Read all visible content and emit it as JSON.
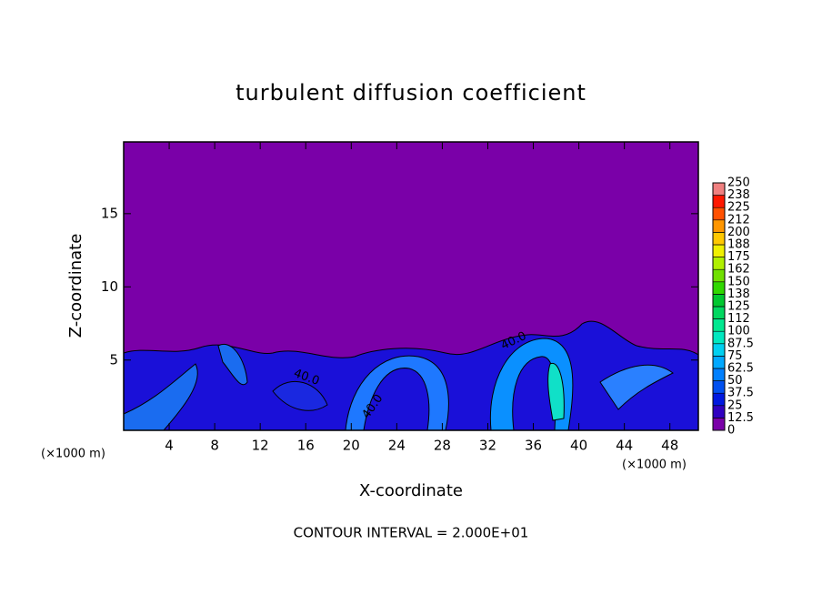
{
  "chart_data": {
    "type": "contour",
    "title": "turbulent diffusion coefficient",
    "xlabel": "X-coordinate",
    "ylabel": "Z-coordinate",
    "x_unit_labels": [
      "(×1000 m)",
      "(×1000 m)"
    ],
    "footer": "CONTOUR INTERVAL = 2.000E+01",
    "xlim": [
      0,
      50.5
    ],
    "xticks": [
      4,
      8,
      12,
      16,
      20,
      24,
      28,
      32,
      36,
      40,
      44,
      48
    ],
    "ylim": [
      0.2,
      19.9
    ],
    "yticks": [
      5,
      10,
      15
    ],
    "background_color": "#7a00a8",
    "contour_labels": [
      "40.0",
      "40.0",
      "40.0"
    ],
    "colorbar": {
      "levels": [
        0,
        12.5,
        25,
        37.5,
        50,
        62.5,
        75,
        87.5,
        100,
        {
          "value": 112.5,
          "label": "112"
        },
        125,
        {
          "value": 137.5,
          "label": "138"
        },
        150,
        {
          "value": 162.5,
          "label": "162"
        },
        175,
        {
          "value": 187.5,
          "label": "188"
        },
        200,
        {
          "value": 212.5,
          "label": "212"
        },
        225,
        {
          "value": 237.5,
          "label": "238"
        },
        250
      ],
      "colors": [
        "#7a00a8",
        "#3000c0",
        "#0018e0",
        "#0050f0",
        "#0080ff",
        "#00a8ff",
        "#00d0f0",
        "#00e8c0",
        "#00e890",
        "#00d860",
        "#00c830",
        "#30d800",
        "#70e000",
        "#b0f000",
        "#f0f000",
        "#ffc800",
        "#ff9600",
        "#ff5000",
        "#ff1800",
        "#f08080"
      ]
    }
  }
}
